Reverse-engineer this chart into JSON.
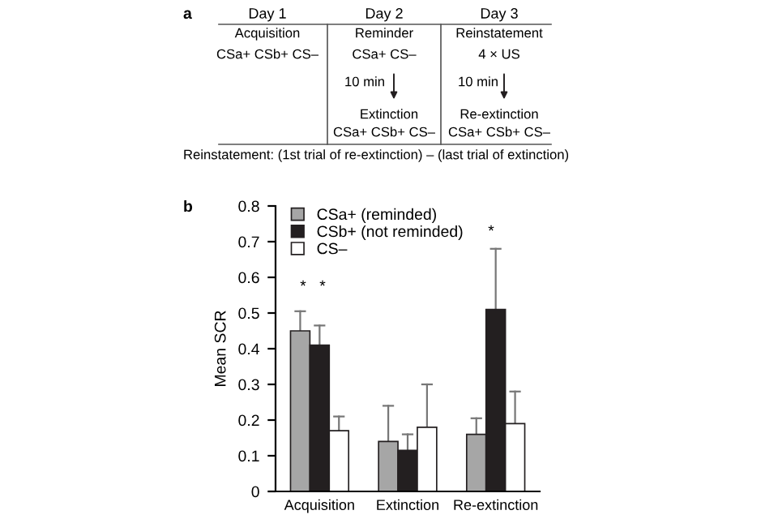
{
  "chart_data": {
    "type": "bar",
    "ylabel": "Mean SCR",
    "categories": [
      "Acquisition",
      "Extinction",
      "Re-extinction"
    ],
    "series": [
      {
        "name": "CSa+ (reminded)",
        "color": "#a6a6a6",
        "values": [
          0.45,
          0.14,
          0.16
        ],
        "errors": [
          [
            0.45,
            0.505
          ],
          [
            0.14,
            0.24
          ],
          [
            0.16,
            0.205
          ]
        ]
      },
      {
        "name": "CSb+ (not reminded)",
        "color": "#231f20",
        "values": [
          0.41,
          0.115,
          0.51
        ],
        "errors": [
          [
            0.41,
            0.465
          ],
          [
            0.115,
            0.16
          ],
          [
            0.51,
            0.68
          ]
        ]
      },
      {
        "name": "CS–",
        "color": "#ffffff",
        "values": [
          0.17,
          0.18,
          0.19
        ],
        "errors": [
          [
            0.17,
            0.21
          ],
          [
            0.18,
            0.3
          ],
          [
            0.19,
            0.28
          ]
        ]
      }
    ],
    "ylim": [
      0,
      0.8
    ],
    "yticks": [
      0,
      0.1,
      0.2,
      0.3,
      0.4,
      0.5,
      0.6,
      0.7,
      0.8
    ],
    "grid": false,
    "legend": "top left",
    "annotations": [
      "*",
      "*",
      "*",
      "a",
      "Day 1",
      "Day 2",
      "Day 3",
      "Acquisition",
      "CSa+ CSb+ CS–",
      "Reminder",
      "CSa+ CS–",
      "10 min",
      "Extinction",
      "CSa+ CSb+ CS–",
      "Reinstatement",
      "4 × US",
      "10 min",
      "Re-extinction",
      "CSa+ CSb+ CS–",
      "Reinstatement: (1st trial of re-extinction) – (last trial of extinction)",
      "b"
    ]
  }
}
